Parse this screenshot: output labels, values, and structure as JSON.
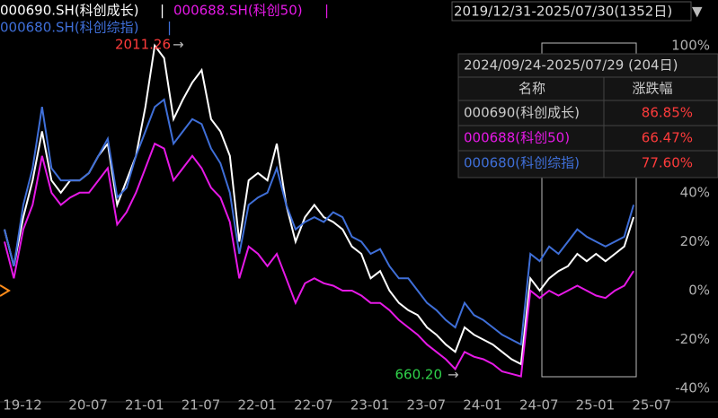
{
  "chart_data": {
    "type": "line",
    "range_label": "2019/12/31-2025/07/30(1352日)",
    "categories": [
      "19-12",
      null,
      null,
      null,
      null,
      null,
      null,
      "20-07",
      null,
      null,
      null,
      null,
      null,
      "21-01",
      null,
      null,
      null,
      null,
      null,
      "21-07",
      null,
      null,
      null,
      null,
      null,
      "22-01",
      null,
      null,
      null,
      null,
      null,
      "22-07",
      null,
      null,
      null,
      null,
      null,
      "23-01",
      null,
      null,
      null,
      null,
      null,
      "23-07",
      null,
      null,
      null,
      null,
      null,
      "24-01",
      null,
      null,
      null,
      null,
      null,
      "24-07",
      null,
      null,
      null,
      null,
      null,
      "25-01",
      null,
      null,
      null,
      null,
      null,
      "25-07"
    ],
    "series": [
      {
        "name": "000690.SH(科创成长)",
        "color": "#ffffff",
        "values": [
          25,
          10,
          30,
          45,
          65,
          45,
          40,
          45,
          45,
          48,
          55,
          60,
          35,
          45,
          55,
          75,
          100,
          95,
          70,
          78,
          85,
          90,
          70,
          65,
          55,
          20,
          45,
          48,
          45,
          60,
          35,
          20,
          30,
          35,
          30,
          28,
          25,
          18,
          15,
          5,
          8,
          0,
          -5,
          -8,
          -10,
          -15,
          -18,
          -22,
          -25,
          -15,
          -18,
          -20,
          -22,
          -25,
          -28,
          -30,
          5,
          0,
          5,
          8,
          10,
          15,
          12,
          15,
          12,
          15,
          18,
          30
        ]
      },
      {
        "name": "000688.SH(科创50)",
        "color": "#e619e6",
        "values": [
          20,
          5,
          25,
          35,
          55,
          40,
          35,
          38,
          40,
          40,
          45,
          50,
          27,
          32,
          40,
          50,
          60,
          58,
          45,
          50,
          55,
          50,
          42,
          38,
          28,
          5,
          18,
          15,
          10,
          15,
          5,
          -5,
          3,
          5,
          3,
          2,
          0,
          0,
          -2,
          -5,
          -5,
          -8,
          -12,
          -15,
          -18,
          -22,
          -25,
          -28,
          -32,
          -25,
          -27,
          -28,
          -30,
          -33,
          -34,
          -35,
          0,
          -3,
          0,
          -2,
          0,
          2,
          0,
          -2,
          -3,
          0,
          2,
          8
        ]
      },
      {
        "name": "000680.SH(科创综指)",
        "color": "#3f6fd8",
        "values": [
          25,
          10,
          35,
          50,
          75,
          50,
          45,
          45,
          45,
          48,
          55,
          62,
          38,
          42,
          55,
          65,
          75,
          78,
          60,
          65,
          70,
          68,
          58,
          52,
          40,
          15,
          35,
          38,
          40,
          50,
          35,
          25,
          28,
          30,
          28,
          32,
          30,
          22,
          20,
          15,
          17,
          10,
          5,
          5,
          0,
          -5,
          -8,
          -12,
          -15,
          -5,
          -10,
          -12,
          -15,
          -18,
          -20,
          -22,
          15,
          12,
          18,
          15,
          20,
          25,
          22,
          20,
          18,
          20,
          22,
          35
        ]
      }
    ],
    "ylim": [
      -52,
      104
    ],
    "yticks": [
      {
        "value": 100,
        "label": "100%"
      },
      {
        "value": 40,
        "label": "40%"
      },
      {
        "value": 20,
        "label": "20%"
      },
      {
        "value": 0,
        "label": "0%"
      },
      {
        "value": -20,
        "label": "-20%"
      },
      {
        "value": -40,
        "label": "-40%"
      }
    ],
    "annotations": [
      "2011.26",
      "660.20"
    ],
    "grid": false
  },
  "stats_panel": {
    "title": "2024/09/24-2025/07/29 (204日)",
    "headers": [
      "名称",
      "涨跌幅"
    ],
    "rows": [
      [
        "000690(科创成长)",
        "86.85%"
      ],
      [
        "000688(科创50)",
        "66.47%"
      ],
      [
        "000680(科创综指)",
        "77.60%"
      ]
    ]
  }
}
